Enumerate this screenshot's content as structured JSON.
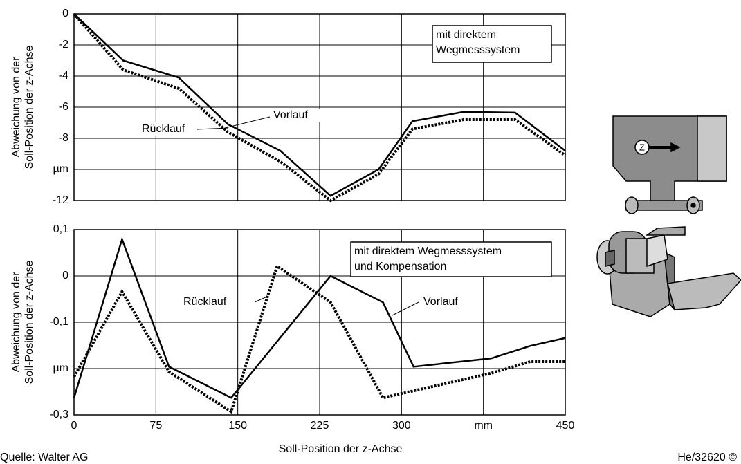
{
  "chart_data": [
    {
      "type": "line",
      "ylabel": [
        "Abweichung von der",
        "Soll-Position der z-Achse"
      ],
      "xlim": [
        0,
        450
      ],
      "ylim": [
        -12,
        0
      ],
      "yticks": [
        0,
        -2,
        -4,
        -6,
        -8,
        {
          "value": -10,
          "label": "µm"
        },
        -12
      ],
      "grid": true,
      "annotation": [
        "mit direktem",
        "Wegmesssystem"
      ],
      "series": [
        {
          "name": "Vorlauf",
          "color": "#000000",
          "style": "solid",
          "x": [
            0,
            45,
            96,
            141,
            189,
            235,
            279,
            310,
            357,
            404,
            450
          ],
          "values": [
            0,
            -3.0,
            -4.1,
            -7.1,
            -8.8,
            -11.7,
            -10,
            -6.9,
            -6.3,
            -6.35,
            -8.8
          ]
        },
        {
          "name": "Rücklauf",
          "color": "#000000",
          "style": "dotted",
          "x": [
            0,
            45,
            96,
            141,
            189,
            235,
            279,
            310,
            357,
            404,
            450
          ],
          "values": [
            0,
            -3.6,
            -4.8,
            -7.6,
            -9.5,
            -12,
            -10.3,
            -7.4,
            -6.8,
            -6.8,
            -9.1
          ]
        }
      ]
    },
    {
      "type": "line",
      "ylabel": [
        "Abweichung von der",
        "Soll-Position der z-Achse"
      ],
      "xlabel": "Soll-Position der z-Achse",
      "xlim": [
        0,
        450
      ],
      "ylim": [
        -0.3,
        0.1
      ],
      "xticks": [
        0,
        75,
        150,
        225,
        300,
        {
          "value": 375,
          "label": "mm"
        },
        450
      ],
      "yticks": [
        {
          "value": 0.1,
          "label": "0,1"
        },
        0,
        {
          "value": -0.1,
          "label": "-0,1"
        },
        {
          "value": -0.2,
          "label": "µm"
        },
        {
          "value": -0.3,
          "label": "-0,3"
        }
      ],
      "grid": true,
      "annotation": [
        "mit direktem Wegmesssystem",
        "und Kompensation"
      ],
      "series": [
        {
          "name": "Vorlauf",
          "color": "#000000",
          "style": "solid",
          "x": [
            0,
            44,
            87,
            144,
            235,
            283,
            311,
            382,
            418,
            450
          ],
          "values": [
            -0.263,
            0.079,
            -0.196,
            -0.263,
            0,
            -0.057,
            -0.196,
            -0.178,
            -0.151,
            -0.134
          ]
        },
        {
          "name": "Rücklauf",
          "color": "#000000",
          "style": "dotted",
          "x": [
            0,
            44,
            87,
            144,
            186,
            235,
            283,
            382,
            418,
            450
          ],
          "values": [
            -0.218,
            -0.034,
            -0.207,
            -0.293,
            0.021,
            -0.057,
            -0.263,
            -0.21,
            -0.185,
            -0.185
          ]
        }
      ]
    }
  ],
  "illustration": {
    "axis_symbol": "Z"
  },
  "source": "Quelle: Walter AG",
  "code": "He/32620 ©"
}
